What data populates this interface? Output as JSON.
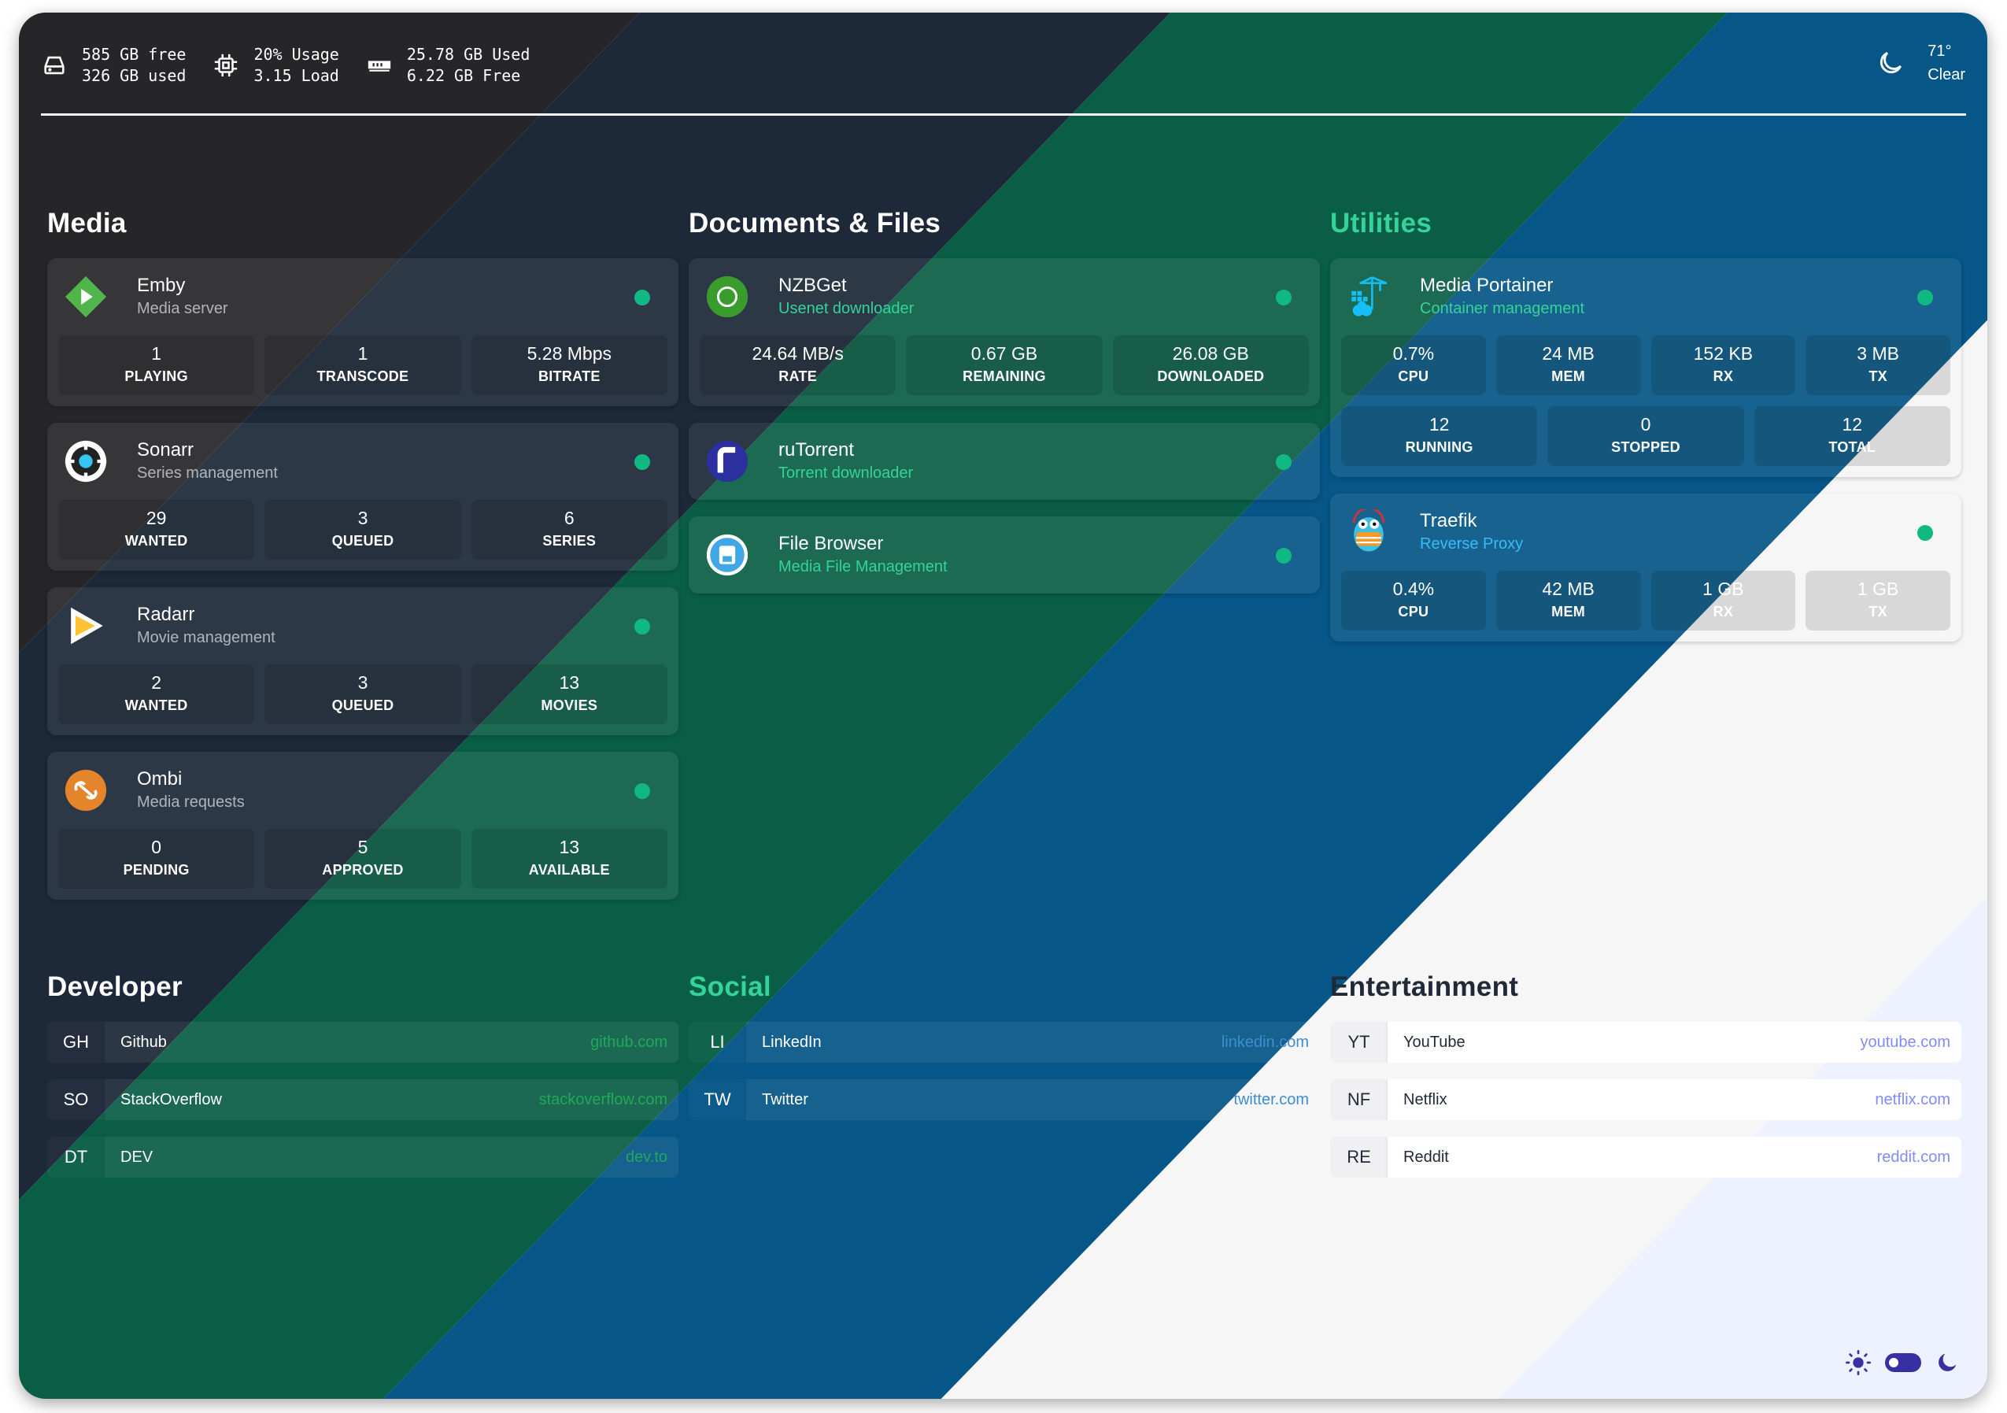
{
  "header": {
    "disk": {
      "icon": "hard-drive-icon",
      "line1": "585 GB free",
      "line2": "326 GB used"
    },
    "cpu": {
      "icon": "cpu-icon",
      "line1": "20% Usage",
      "line2": "3.15 Load"
    },
    "ram": {
      "icon": "memory-icon",
      "line1": "25.78 GB Used",
      "line2": "6.22 GB Free"
    },
    "weather": {
      "icon": "moon-icon",
      "temp": "71°",
      "condition": "Clear"
    }
  },
  "colors": {
    "charcoal": "#262628",
    "navy": "#1d2838",
    "green": "#0a5e45",
    "blue": "#065687",
    "white": "#f6f6f6",
    "lavender": "#eef2fe",
    "status_online": "#10b981",
    "accent": "#3730a3"
  },
  "sections": [
    {
      "title": "Media",
      "title_color": "#ffffff",
      "services": [
        {
          "name": "Emby",
          "subtitle": "Media server",
          "icon": "emby-icon",
          "status": "online",
          "stats": [
            [
              {
                "value": "1",
                "label": "PLAYING"
              },
              {
                "value": "1",
                "label": "TRANSCODE"
              },
              {
                "value": "5.28 Mbps",
                "label": "BITRATE"
              }
            ]
          ]
        },
        {
          "name": "Sonarr",
          "subtitle": "Series management",
          "icon": "sonarr-icon",
          "status": "online",
          "stats": [
            [
              {
                "value": "29",
                "label": "WANTED"
              },
              {
                "value": "3",
                "label": "QUEUED"
              },
              {
                "value": "6",
                "label": "SERIES"
              }
            ]
          ]
        },
        {
          "name": "Radarr",
          "subtitle": "Movie management",
          "icon": "radarr-icon",
          "status": "online",
          "stats": [
            [
              {
                "value": "2",
                "label": "WANTED"
              },
              {
                "value": "3",
                "label": "QUEUED"
              },
              {
                "value": "13",
                "label": "MOVIES"
              }
            ]
          ]
        },
        {
          "name": "Ombi",
          "subtitle": "Media requests",
          "icon": "ombi-icon",
          "status": "online",
          "stats": [
            [
              {
                "value": "0",
                "label": "PENDING"
              },
              {
                "value": "5",
                "label": "APPROVED"
              },
              {
                "value": "13",
                "label": "AVAILABLE"
              }
            ]
          ]
        }
      ]
    },
    {
      "title": "Documents & Files",
      "title_color": "#ffffff",
      "services": [
        {
          "name": "NZBGet",
          "subtitle": "Usenet downloader",
          "icon": "nzbget-icon",
          "status": "online",
          "stats": [
            [
              {
                "value": "24.64 MB/s",
                "label": "RATE"
              },
              {
                "value": "0.67 GB",
                "label": "REMAINING"
              },
              {
                "value": "26.08 GB",
                "label": "DOWNLOADED"
              }
            ]
          ]
        },
        {
          "name": "ruTorrent",
          "subtitle": "Torrent downloader",
          "icon": "rutorrent-icon",
          "status": "online",
          "stats": []
        },
        {
          "name": "File Browser",
          "subtitle": "Media File Management",
          "icon": "filebrowser-icon",
          "status": "online",
          "stats": []
        }
      ]
    },
    {
      "title": "Utilities",
      "title_color": "#34d399",
      "services": [
        {
          "name": "Media Portainer",
          "subtitle": "Container management",
          "icon": "portainer-icon",
          "status": "online",
          "stats": [
            [
              {
                "value": "0.7%",
                "label": "CPU"
              },
              {
                "value": "24 MB",
                "label": "MEM"
              },
              {
                "value": "152 KB",
                "label": "RX"
              },
              {
                "value": "3 MB",
                "label": "TX"
              }
            ],
            [
              {
                "value": "12",
                "label": "RUNNING"
              },
              {
                "value": "0",
                "label": "STOPPED"
              },
              {
                "value": "12",
                "label": "TOTAL"
              }
            ]
          ]
        },
        {
          "name": "Traefik",
          "subtitle": "Reverse Proxy",
          "icon": "traefik-icon",
          "status": "online",
          "stats": [
            [
              {
                "value": "0.4%",
                "label": "CPU"
              },
              {
                "value": "42 MB",
                "label": "MEM"
              },
              {
                "value": "1 GB",
                "label": "RX"
              },
              {
                "value": "1 GB",
                "label": "TX"
              }
            ]
          ]
        }
      ]
    }
  ],
  "bookmarks": [
    {
      "title": "Developer",
      "title_color": "#ffffff",
      "url_color": "#22a85a",
      "links": [
        {
          "abbr": "GH",
          "name": "Github",
          "url": "github.com"
        },
        {
          "abbr": "SO",
          "name": "StackOverflow",
          "url": "stackoverflow.com"
        },
        {
          "abbr": "DT",
          "name": "DEV",
          "url": "dev.to"
        }
      ]
    },
    {
      "title": "Social",
      "title_color": "#34d399",
      "url_color": "#3b8fd0",
      "links": [
        {
          "abbr": "LI",
          "name": "LinkedIn",
          "url": "linkedin.com"
        },
        {
          "abbr": "TW",
          "name": "Twitter",
          "url": "twitter.com"
        }
      ]
    },
    {
      "title": "Entertainment",
      "title_color": "#1f2937",
      "url_color": "#818cf8",
      "links": [
        {
          "abbr": "YT",
          "name": "YouTube",
          "url": "youtube.com"
        },
        {
          "abbr": "NF",
          "name": "Netflix",
          "url": "netflix.com"
        },
        {
          "abbr": "RE",
          "name": "Reddit",
          "url": "reddit.com"
        }
      ]
    }
  ],
  "theme_toggle": {
    "mode": "dark",
    "light_icon": "sun-icon",
    "dark_icon": "moon-icon"
  }
}
